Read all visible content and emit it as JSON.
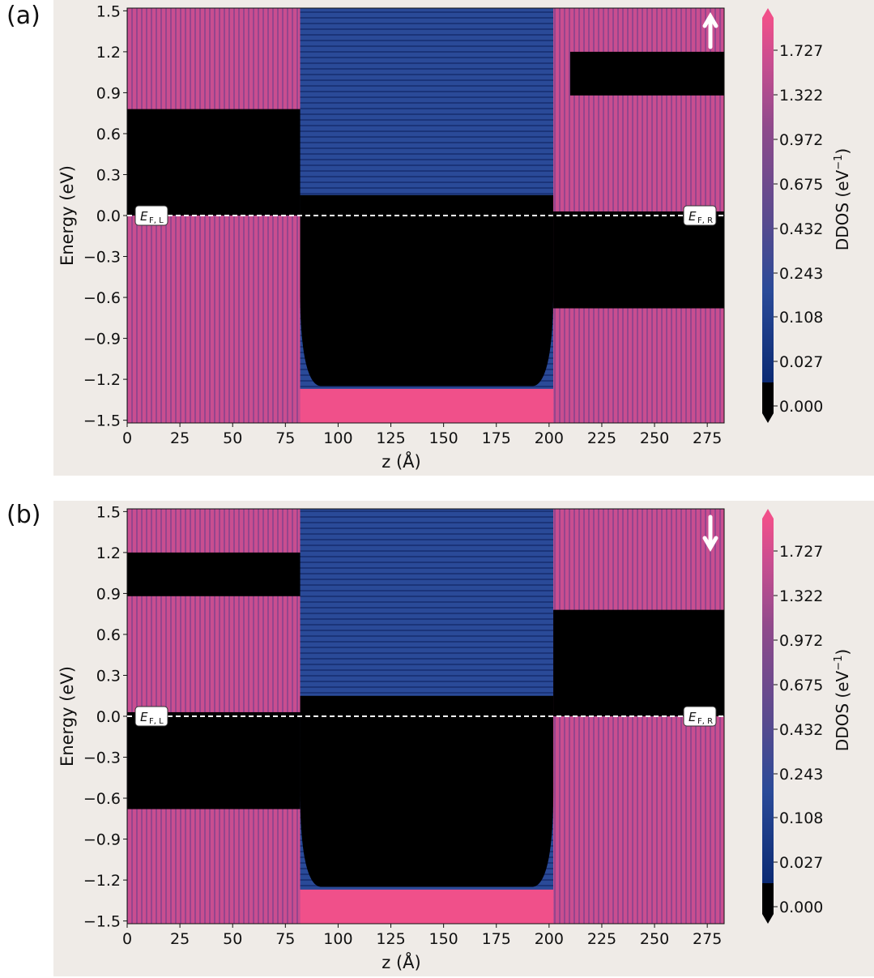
{
  "chart_data": [
    {
      "type": "heatmap",
      "panel_label": "(a)",
      "spin_icon": "up-arrow-icon",
      "xlabel": "z (Å)",
      "ylabel": "Energy (eV)",
      "xlim": [
        0,
        283
      ],
      "ylim": [
        -1.52,
        1.52
      ],
      "xticks": [
        0,
        25,
        50,
        75,
        100,
        125,
        150,
        175,
        200,
        225,
        250,
        275
      ],
      "yticks": [
        -1.5,
        -1.2,
        -0.9,
        -0.6,
        -0.3,
        0.0,
        0.3,
        0.6,
        0.9,
        1.2,
        1.5
      ],
      "ytick_labels": [
        "−1.5",
        "−1.2",
        "−0.9",
        "−0.6",
        "−0.3",
        "0.0",
        "0.3",
        "0.6",
        "0.9",
        "1.2",
        "1.5"
      ],
      "fermi_level": 0.0,
      "fermi_labels": {
        "left_main": "E",
        "left_sub": "F, L",
        "right_main": "E",
        "right_sub": "F, R"
      },
      "colorbar": {
        "label": "DDOS (eV",
        "label_sup": "−1",
        "label_close": ")",
        "ticks": [
          "1.727",
          "1.322",
          "0.972",
          "0.675",
          "0.432",
          "0.243",
          "0.108",
          "0.027",
          "0.000"
        ],
        "colors": [
          "#000000",
          "#0b2a73",
          "#2a4a98",
          "#5a4a8e",
          "#8f4a8c",
          "#c94e90",
          "#f0508a"
        ]
      },
      "regions": {
        "left_lead_z": [
          0,
          82
        ],
        "barrier_z": [
          82,
          202
        ],
        "right_lead_z": [
          202,
          283
        ],
        "left_gap_ev": [
          0.0,
          0.78
        ],
        "right_gap_ev": [
          -0.68,
          0.03
        ],
        "right_upper_gap_ev": [
          0.88,
          1.2
        ],
        "barrier_gap_ev": [
          -1.25,
          0.15
        ]
      }
    },
    {
      "type": "heatmap",
      "panel_label": "(b)",
      "spin_icon": "down-arrow-icon",
      "xlabel": "z (Å)",
      "ylabel": "Energy (eV)",
      "xlim": [
        0,
        283
      ],
      "ylim": [
        -1.52,
        1.52
      ],
      "xticks": [
        0,
        25,
        50,
        75,
        100,
        125,
        150,
        175,
        200,
        225,
        250,
        275
      ],
      "yticks": [
        -1.5,
        -1.2,
        -0.9,
        -0.6,
        -0.3,
        0.0,
        0.3,
        0.6,
        0.9,
        1.2,
        1.5
      ],
      "ytick_labels": [
        "−1.5",
        "−1.2",
        "−0.9",
        "−0.6",
        "−0.3",
        "0.0",
        "0.3",
        "0.6",
        "0.9",
        "1.2",
        "1.5"
      ],
      "fermi_level": 0.0,
      "fermi_labels": {
        "left_main": "E",
        "left_sub": "F, L",
        "right_main": "E",
        "right_sub": "F, R"
      },
      "colorbar": {
        "label": "DDOS (eV",
        "label_sup": "−1",
        "label_close": ")",
        "ticks": [
          "1.727",
          "1.322",
          "0.972",
          "0.675",
          "0.432",
          "0.243",
          "0.108",
          "0.027",
          "0.000"
        ],
        "colors": [
          "#000000",
          "#0b2a73",
          "#2a4a98",
          "#5a4a8e",
          "#8f4a8c",
          "#c94e90",
          "#f0508a"
        ]
      },
      "regions": {
        "left_lead_z": [
          0,
          82
        ],
        "barrier_z": [
          82,
          202
        ],
        "right_lead_z": [
          202,
          283
        ],
        "left_gap_ev": [
          -0.68,
          0.03
        ],
        "left_upper_gap_ev": [
          0.88,
          1.2
        ],
        "right_gap_ev": [
          0.0,
          0.78
        ],
        "barrier_gap_ev": [
          -1.25,
          0.15
        ]
      }
    }
  ]
}
